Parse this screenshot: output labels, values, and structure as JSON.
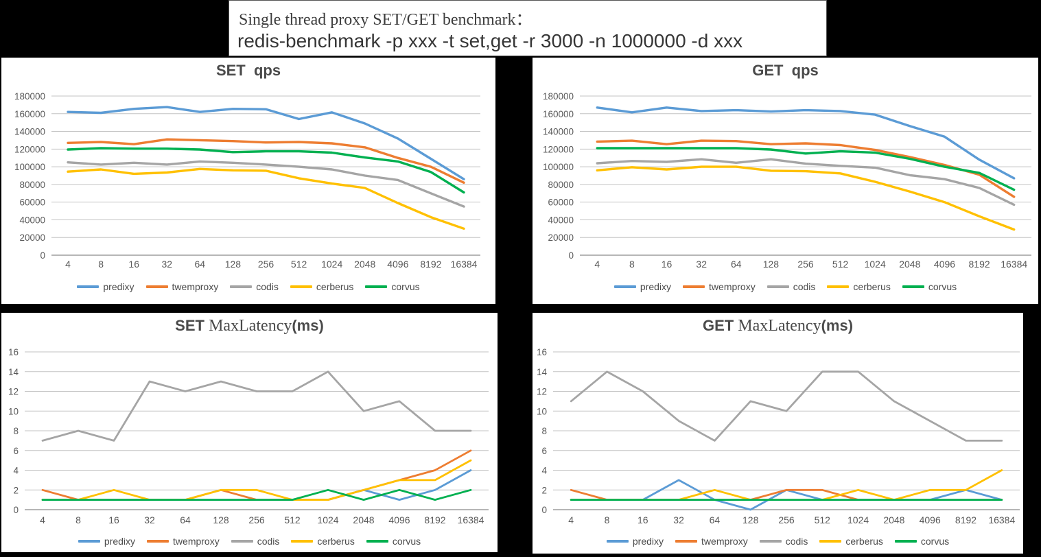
{
  "header": {
    "title_line1": "Single thread proxy SET/GET benchmark：",
    "title_line2": "redis-benchmark -p xxx -t set,get -r 3000 -n 1000000 -d xxx"
  },
  "palette": {
    "predixy": "#5B9BD5",
    "twemproxy": "#ED7D31",
    "codis": "#A5A5A5",
    "cerberus": "#FFC000",
    "corvus": "#00B050",
    "grid": "#C3C3C3",
    "axis_line": "#9E9E9E",
    "tick_text": "#595959",
    "title_text": "#4A4A4A",
    "panel_bg": "#FFFFFF",
    "page_bg": "#000000"
  },
  "categories": [
    "4",
    "8",
    "16",
    "32",
    "64",
    "128",
    "256",
    "512",
    "1024",
    "2048",
    "4096",
    "8192",
    "16384"
  ],
  "legend_labels": [
    "predixy",
    "twemproxy",
    "codis",
    "cerberus",
    "corvus"
  ],
  "chart_data": [
    {
      "id": "set-qps",
      "type": "line",
      "title_parts": [
        {
          "text": "SET  qps",
          "style": "sans"
        }
      ],
      "xlabel": "",
      "ylabel": "",
      "ylim": [
        0,
        180000
      ],
      "ytick": 20000,
      "grid": true,
      "legend_position": "bottom",
      "categories": [
        "4",
        "8",
        "16",
        "32",
        "64",
        "128",
        "256",
        "512",
        "1024",
        "2048",
        "4096",
        "8192",
        "16384"
      ],
      "series": [
        {
          "name": "predixy",
          "color": "#5B9BD5",
          "values": [
            162000,
            161000,
            165500,
            167500,
            162000,
            165500,
            165000,
            154000,
            161500,
            149000,
            132000,
            109000,
            86000
          ]
        },
        {
          "name": "twemproxy",
          "color": "#ED7D31",
          "values": [
            127000,
            128000,
            125500,
            131000,
            130000,
            129000,
            127500,
            128000,
            126500,
            122000,
            110000,
            100000,
            82000
          ]
        },
        {
          "name": "codis",
          "color": "#A5A5A5",
          "values": [
            105000,
            102500,
            104500,
            102500,
            106000,
            104500,
            102500,
            100000,
            97000,
            90000,
            85000,
            70000,
            55000
          ]
        },
        {
          "name": "cerberus",
          "color": "#FFC000",
          "values": [
            94500,
            97000,
            92000,
            93500,
            97500,
            96000,
            95500,
            87000,
            81000,
            76000,
            59000,
            43000,
            30000
          ]
        },
        {
          "name": "corvus",
          "color": "#00B050",
          "values": [
            119500,
            121000,
            120500,
            120500,
            119500,
            116500,
            117500,
            117500,
            116000,
            110500,
            106000,
            94000,
            71000
          ]
        }
      ]
    },
    {
      "id": "get-qps",
      "type": "line",
      "title_parts": [
        {
          "text": "GET  qps",
          "style": "sans"
        }
      ],
      "xlabel": "",
      "ylabel": "",
      "ylim": [
        0,
        180000
      ],
      "ytick": 20000,
      "grid": true,
      "legend_position": "bottom",
      "categories": [
        "4",
        "8",
        "16",
        "32",
        "64",
        "128",
        "256",
        "512",
        "1024",
        "2048",
        "4096",
        "8192",
        "16384"
      ],
      "series": [
        {
          "name": "predixy",
          "color": "#5B9BD5",
          "values": [
            167000,
            161500,
            167000,
            163000,
            164000,
            162500,
            164000,
            163000,
            159000,
            146000,
            134000,
            108000,
            87000
          ]
        },
        {
          "name": "twemproxy",
          "color": "#ED7D31",
          "values": [
            128500,
            129500,
            125500,
            129500,
            129000,
            125500,
            126500,
            124500,
            119000,
            111000,
            102000,
            91000,
            66000
          ]
        },
        {
          "name": "codis",
          "color": "#A5A5A5",
          "values": [
            104000,
            106500,
            105500,
            108500,
            104500,
            108500,
            103500,
            101000,
            99000,
            90500,
            86000,
            76000,
            57000
          ]
        },
        {
          "name": "cerberus",
          "color": "#FFC000",
          "values": [
            96000,
            99500,
            97000,
            100000,
            100000,
            95500,
            95000,
            92500,
            83000,
            72000,
            60000,
            44000,
            29000
          ]
        },
        {
          "name": "corvus",
          "color": "#00B050",
          "values": [
            121000,
            121000,
            121000,
            121000,
            121000,
            119500,
            115000,
            117500,
            116000,
            109000,
            100000,
            93000,
            74000
          ]
        }
      ]
    },
    {
      "id": "set-lat",
      "type": "line",
      "title_parts": [
        {
          "text": "SET ",
          "style": "sans"
        },
        {
          "text": "MaxLatency",
          "style": "serif"
        },
        {
          "text": "(ms)",
          "style": "sans"
        }
      ],
      "xlabel": "",
      "ylabel": "",
      "ylim": [
        0,
        16
      ],
      "ytick": 2,
      "grid": true,
      "legend_position": "bottom",
      "categories": [
        "4",
        "8",
        "16",
        "32",
        "64",
        "128",
        "256",
        "512",
        "1024",
        "2048",
        "4096",
        "8192",
        "16384"
      ],
      "series": [
        {
          "name": "predixy",
          "color": "#5B9BD5",
          "values": [
            1,
            1,
            1,
            1,
            1,
            1,
            1,
            1,
            1,
            2,
            1,
            2,
            4
          ]
        },
        {
          "name": "twemproxy",
          "color": "#ED7D31",
          "values": [
            2,
            1,
            1,
            1,
            1,
            2,
            1,
            1,
            1,
            2,
            3,
            4,
            6
          ]
        },
        {
          "name": "codis",
          "color": "#A5A5A5",
          "values": [
            7,
            8,
            7,
            13,
            12,
            13,
            12,
            12,
            14,
            10,
            11,
            8,
            8
          ]
        },
        {
          "name": "cerberus",
          "color": "#FFC000",
          "values": [
            1,
            1,
            2,
            1,
            1,
            2,
            2,
            1,
            1,
            2,
            3,
            3,
            5
          ]
        },
        {
          "name": "corvus",
          "color": "#00B050",
          "values": [
            1,
            1,
            1,
            1,
            1,
            1,
            1,
            1,
            2,
            1,
            2,
            1,
            2
          ]
        }
      ]
    },
    {
      "id": "get-lat",
      "type": "line",
      "title_parts": [
        {
          "text": "GET ",
          "style": "sans"
        },
        {
          "text": "MaxLatency",
          "style": "serif"
        },
        {
          "text": "(ms)",
          "style": "sans"
        }
      ],
      "xlabel": "",
      "ylabel": "",
      "ylim": [
        0,
        16
      ],
      "ytick": 2,
      "grid": true,
      "legend_position": "bottom",
      "categories": [
        "4",
        "8",
        "16",
        "32",
        "64",
        "128",
        "256",
        "512",
        "1024",
        "2048",
        "4096",
        "8192",
        "16384"
      ],
      "series": [
        {
          "name": "predixy",
          "color": "#5B9BD5",
          "values": [
            1,
            1,
            1,
            3,
            1,
            0,
            2,
            1,
            1,
            1,
            1,
            2,
            1
          ]
        },
        {
          "name": "twemproxy",
          "color": "#ED7D31",
          "values": [
            2,
            1,
            1,
            1,
            1,
            1,
            2,
            2,
            1,
            1,
            1,
            1,
            1
          ]
        },
        {
          "name": "codis",
          "color": "#A5A5A5",
          "values": [
            11,
            14,
            12,
            9,
            7,
            11,
            10,
            14,
            14,
            11,
            9,
            7,
            7
          ]
        },
        {
          "name": "cerberus",
          "color": "#FFC000",
          "values": [
            1,
            1,
            1,
            1,
            2,
            1,
            1,
            1,
            2,
            1,
            2,
            2,
            4
          ]
        },
        {
          "name": "corvus",
          "color": "#00B050",
          "values": [
            1,
            1,
            1,
            1,
            1,
            1,
            1,
            1,
            1,
            1,
            1,
            1,
            1
          ]
        }
      ]
    }
  ]
}
